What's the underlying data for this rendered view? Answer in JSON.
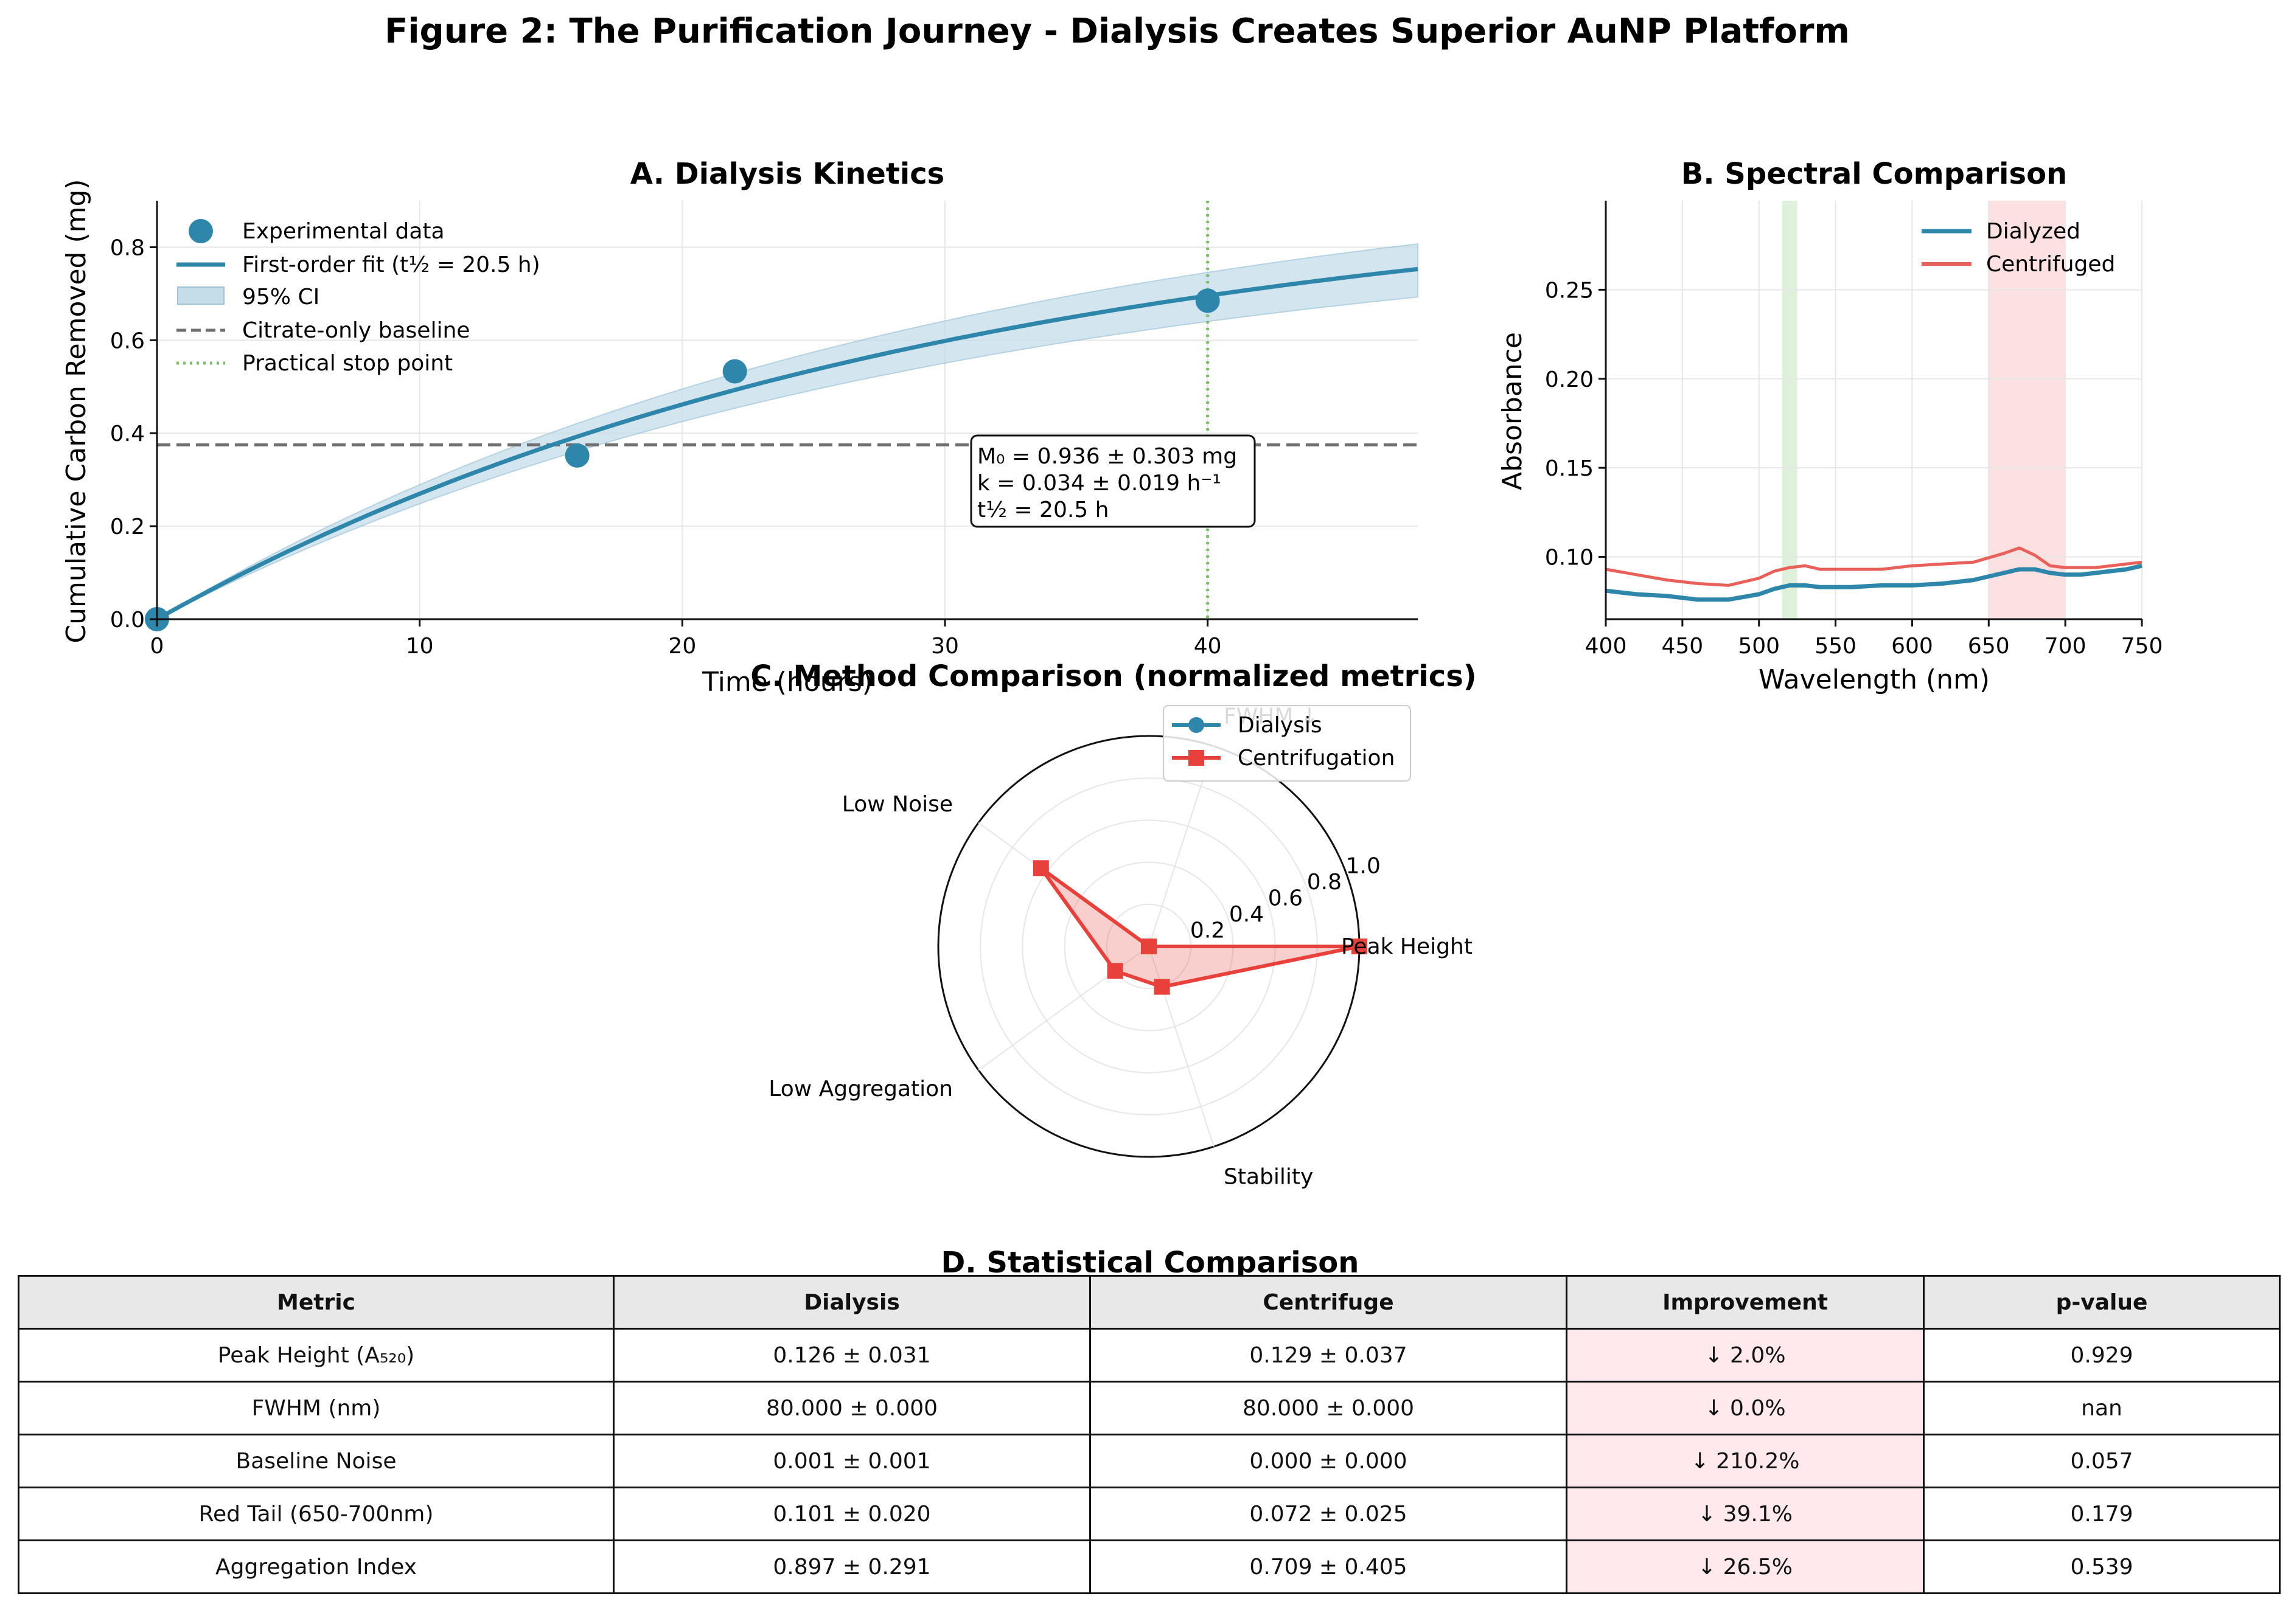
{
  "figure_title": "Figure 2: The Purification Journey - Dialysis Creates Superior AuNP Platform",
  "chart_data": [
    {
      "type": "scatter",
      "title": "A. Dialysis Kinetics",
      "xlabel": "Time (hours)",
      "ylabel": "Cumulative Carbon Removed (mg)",
      "xlim": [
        0,
        48
      ],
      "ylim": [
        0,
        0.9
      ],
      "xticks": [
        0,
        10,
        20,
        30,
        40
      ],
      "yticks": [
        0.0,
        0.2,
        0.4,
        0.6,
        0.8
      ],
      "grid": true,
      "legend_position": "top-left",
      "colors": {
        "data": "#2e86ab",
        "ci": "#c5dde9",
        "baseline": "#707070",
        "stop": "#7fbf6a"
      },
      "series": [
        {
          "name": "Experimental data",
          "kind": "points",
          "x": [
            0,
            16,
            22,
            40
          ],
          "y": [
            0.0,
            0.352,
            0.533,
            0.685
          ]
        },
        {
          "name": "First-order fit (t½ = 20.5 h)",
          "kind": "fit",
          "M0": 0.936,
          "k": 0.034
        },
        {
          "name": "95% CI",
          "kind": "band",
          "x": [
            0,
            48
          ],
          "lower_at_max": 0.693,
          "upper_at_max": 0.807
        },
        {
          "name": "Citrate-only baseline",
          "kind": "hline",
          "y": 0.375
        },
        {
          "name": "Practical stop point",
          "kind": "vline",
          "x": 40
        }
      ],
      "annotation": [
        "M₀ = 0.936 ± 0.303 mg",
        "k = 0.034 ± 0.019 h⁻¹",
        "t½ = 20.5 h"
      ]
    },
    {
      "type": "line",
      "title": "B. Spectral Comparison",
      "xlabel": "Wavelength (nm)",
      "ylabel": "Absorbance",
      "xlim": [
        400,
        750
      ],
      "ylim": [
        0.065,
        0.3
      ],
      "xticks": [
        400,
        450,
        500,
        550,
        600,
        650,
        700,
        750
      ],
      "yticks": [
        0.1,
        0.15,
        0.2,
        0.25
      ],
      "grid": true,
      "legend_position": "top-right",
      "shaded_regions": [
        {
          "x": [
            515,
            525
          ],
          "color": "#dff0db"
        },
        {
          "x": [
            650,
            700
          ],
          "color": "#fde0e0"
        }
      ],
      "series": [
        {
          "name": "Dialyzed",
          "color": "#2e86ab",
          "x": [
            400,
            420,
            440,
            460,
            480,
            500,
            510,
            520,
            530,
            540,
            560,
            580,
            600,
            620,
            640,
            660,
            670,
            680,
            690,
            700,
            710,
            720,
            740,
            750
          ],
          "y": [
            0.081,
            0.079,
            0.078,
            0.076,
            0.076,
            0.079,
            0.082,
            0.084,
            0.084,
            0.083,
            0.083,
            0.084,
            0.084,
            0.085,
            0.087,
            0.091,
            0.093,
            0.093,
            0.091,
            0.09,
            0.09,
            0.091,
            0.093,
            0.095
          ]
        },
        {
          "name": "Centrifuged",
          "color": "#e8605a",
          "x": [
            400,
            420,
            440,
            460,
            480,
            500,
            510,
            520,
            530,
            540,
            560,
            580,
            600,
            620,
            640,
            660,
            670,
            680,
            690,
            700,
            710,
            720,
            740,
            750
          ],
          "y": [
            0.093,
            0.09,
            0.087,
            0.085,
            0.084,
            0.088,
            0.092,
            0.094,
            0.095,
            0.093,
            0.093,
            0.093,
            0.095,
            0.096,
            0.097,
            0.102,
            0.105,
            0.101,
            0.095,
            0.094,
            0.094,
            0.094,
            0.096,
            0.097
          ]
        }
      ]
    },
    {
      "type": "radar",
      "title": "C. Method Comparison (normalized metrics)",
      "axes": [
        "Peak Height",
        "FWHM ↓",
        "Low Noise",
        "Low Aggregation",
        "Stability"
      ],
      "rticks": [
        0.2,
        0.4,
        0.6,
        0.8,
        1.0
      ],
      "rlim": [
        0,
        1.0
      ],
      "legend_position": "top-right",
      "series": [
        {
          "name": "Dialysis",
          "color": "#2e86ab",
          "marker": "circle",
          "values": [
            0.0,
            0.0,
            0.0,
            0.0,
            0.0
          ]
        },
        {
          "name": "Centrifugation",
          "color": "#e8403a",
          "marker": "square",
          "values": [
            1.0,
            0.0,
            0.633,
            0.198,
            0.202
          ]
        }
      ]
    },
    {
      "type": "table",
      "title": "D. Statistical Comparison",
      "columns": [
        "Metric",
        "Dialysis",
        "Centrifuge",
        "Improvement",
        "p-value"
      ],
      "rows": [
        [
          "Peak Height (A₅₂₀)",
          "0.126 ± 0.031",
          "0.129 ± 0.037",
          "↓ 2.0%",
          "0.929"
        ],
        [
          "FWHM (nm)",
          "80.000 ± 0.000",
          "80.000 ± 0.000",
          "↓ 0.0%",
          "nan"
        ],
        [
          "Baseline Noise",
          "0.001 ± 0.001",
          "0.000 ± 0.000",
          "↓ 210.2%",
          "0.057"
        ],
        [
          "Red Tail (650-700nm)",
          "0.101 ± 0.020",
          "0.072 ± 0.025",
          "↓ 39.1%",
          "0.179"
        ],
        [
          "Aggregation Index",
          "0.897 ± 0.291",
          "0.709 ± 0.405",
          "↓ 26.5%",
          "0.539"
        ]
      ],
      "highlight_column": "Improvement",
      "highlight_color": "#ffe9ec"
    }
  ]
}
